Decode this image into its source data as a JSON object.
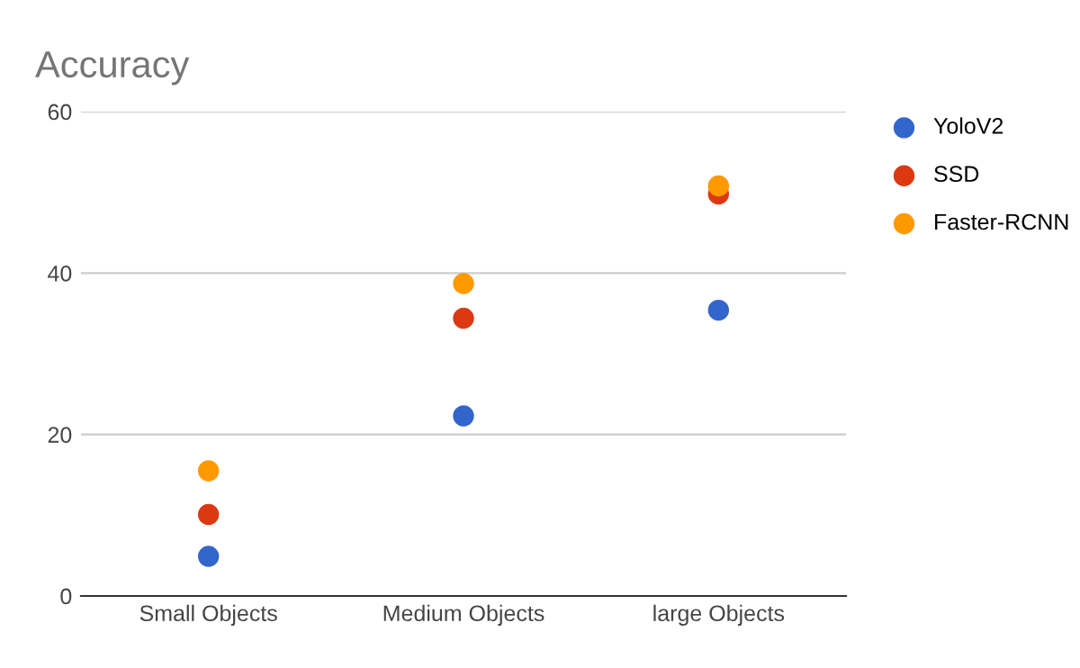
{
  "chart_data": {
    "type": "scatter",
    "title": "Accuracy",
    "categories": [
      "Small Objects",
      "Medium Objects",
      "large Objects"
    ],
    "series": [
      {
        "name": "YoloV2",
        "color": "#3366cc",
        "values": [
          4.9,
          22.3,
          35.4
        ]
      },
      {
        "name": "SSD",
        "color": "#dc3912",
        "values": [
          10.1,
          34.4,
          49.8
        ]
      },
      {
        "name": "Faster-RCNN",
        "color": "#ff9900",
        "values": [
          15.5,
          38.7,
          50.8
        ]
      }
    ],
    "ylim": [
      0,
      60
    ],
    "yticks": [
      0,
      20,
      40,
      60
    ],
    "grid": "y",
    "legend": "right",
    "marker": "circle"
  }
}
